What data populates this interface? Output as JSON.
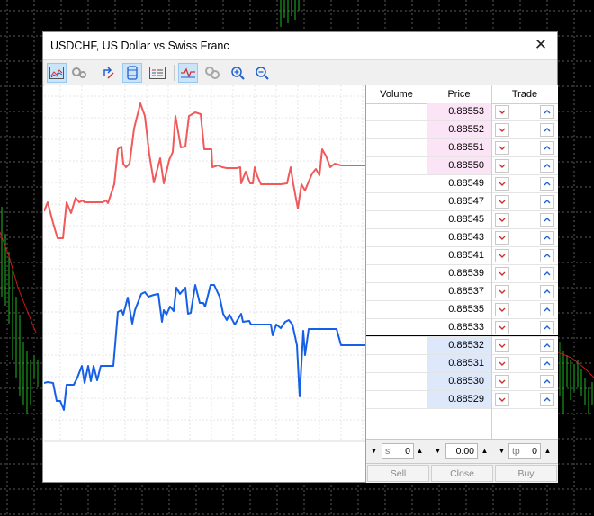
{
  "window": {
    "title": "USDCHF, US Dollar vs Swiss Franc"
  },
  "toolbar": {
    "buttons": [
      {
        "icon": "line-chart-icon",
        "active": true
      },
      {
        "icon": "tick-settings-icon",
        "active": false
      },
      {
        "icon": "one-click-trading-icon",
        "active": false
      },
      {
        "icon": "depth-of-market-icon",
        "active": true
      },
      {
        "icon": "volume-list-icon",
        "active": false
      },
      {
        "icon": "tick-chart-icon",
        "active": true
      },
      {
        "icon": "link-icon",
        "active": false
      },
      {
        "icon": "zoom-in-icon",
        "active": false
      },
      {
        "icon": "zoom-out-icon",
        "active": false
      }
    ]
  },
  "dom": {
    "headers": {
      "volume": "Volume",
      "price": "Price",
      "trade": "Trade"
    },
    "asks": [
      "0.88553",
      "0.88552",
      "0.88551",
      "0.88550"
    ],
    "middle": [
      "0.88549",
      "0.88547",
      "0.88545",
      "0.88543",
      "0.88541",
      "0.88539",
      "0.88537",
      "0.88535",
      "0.88533"
    ],
    "bids": [
      "0.88532",
      "0.88531",
      "0.88530",
      "0.88529"
    ],
    "sl_label": "sl",
    "sl_value": "0",
    "volume_value": "0.00",
    "tp_label": "tp",
    "tp_value": "0",
    "sell_label": "Sell",
    "close_label": "Close",
    "buy_label": "Buy"
  },
  "colors": {
    "ask": "#f05a5a",
    "bid": "#1560e6",
    "ask_bg": "#fce4f7",
    "bid_bg": "#dde8fb",
    "background": "#000000"
  }
}
